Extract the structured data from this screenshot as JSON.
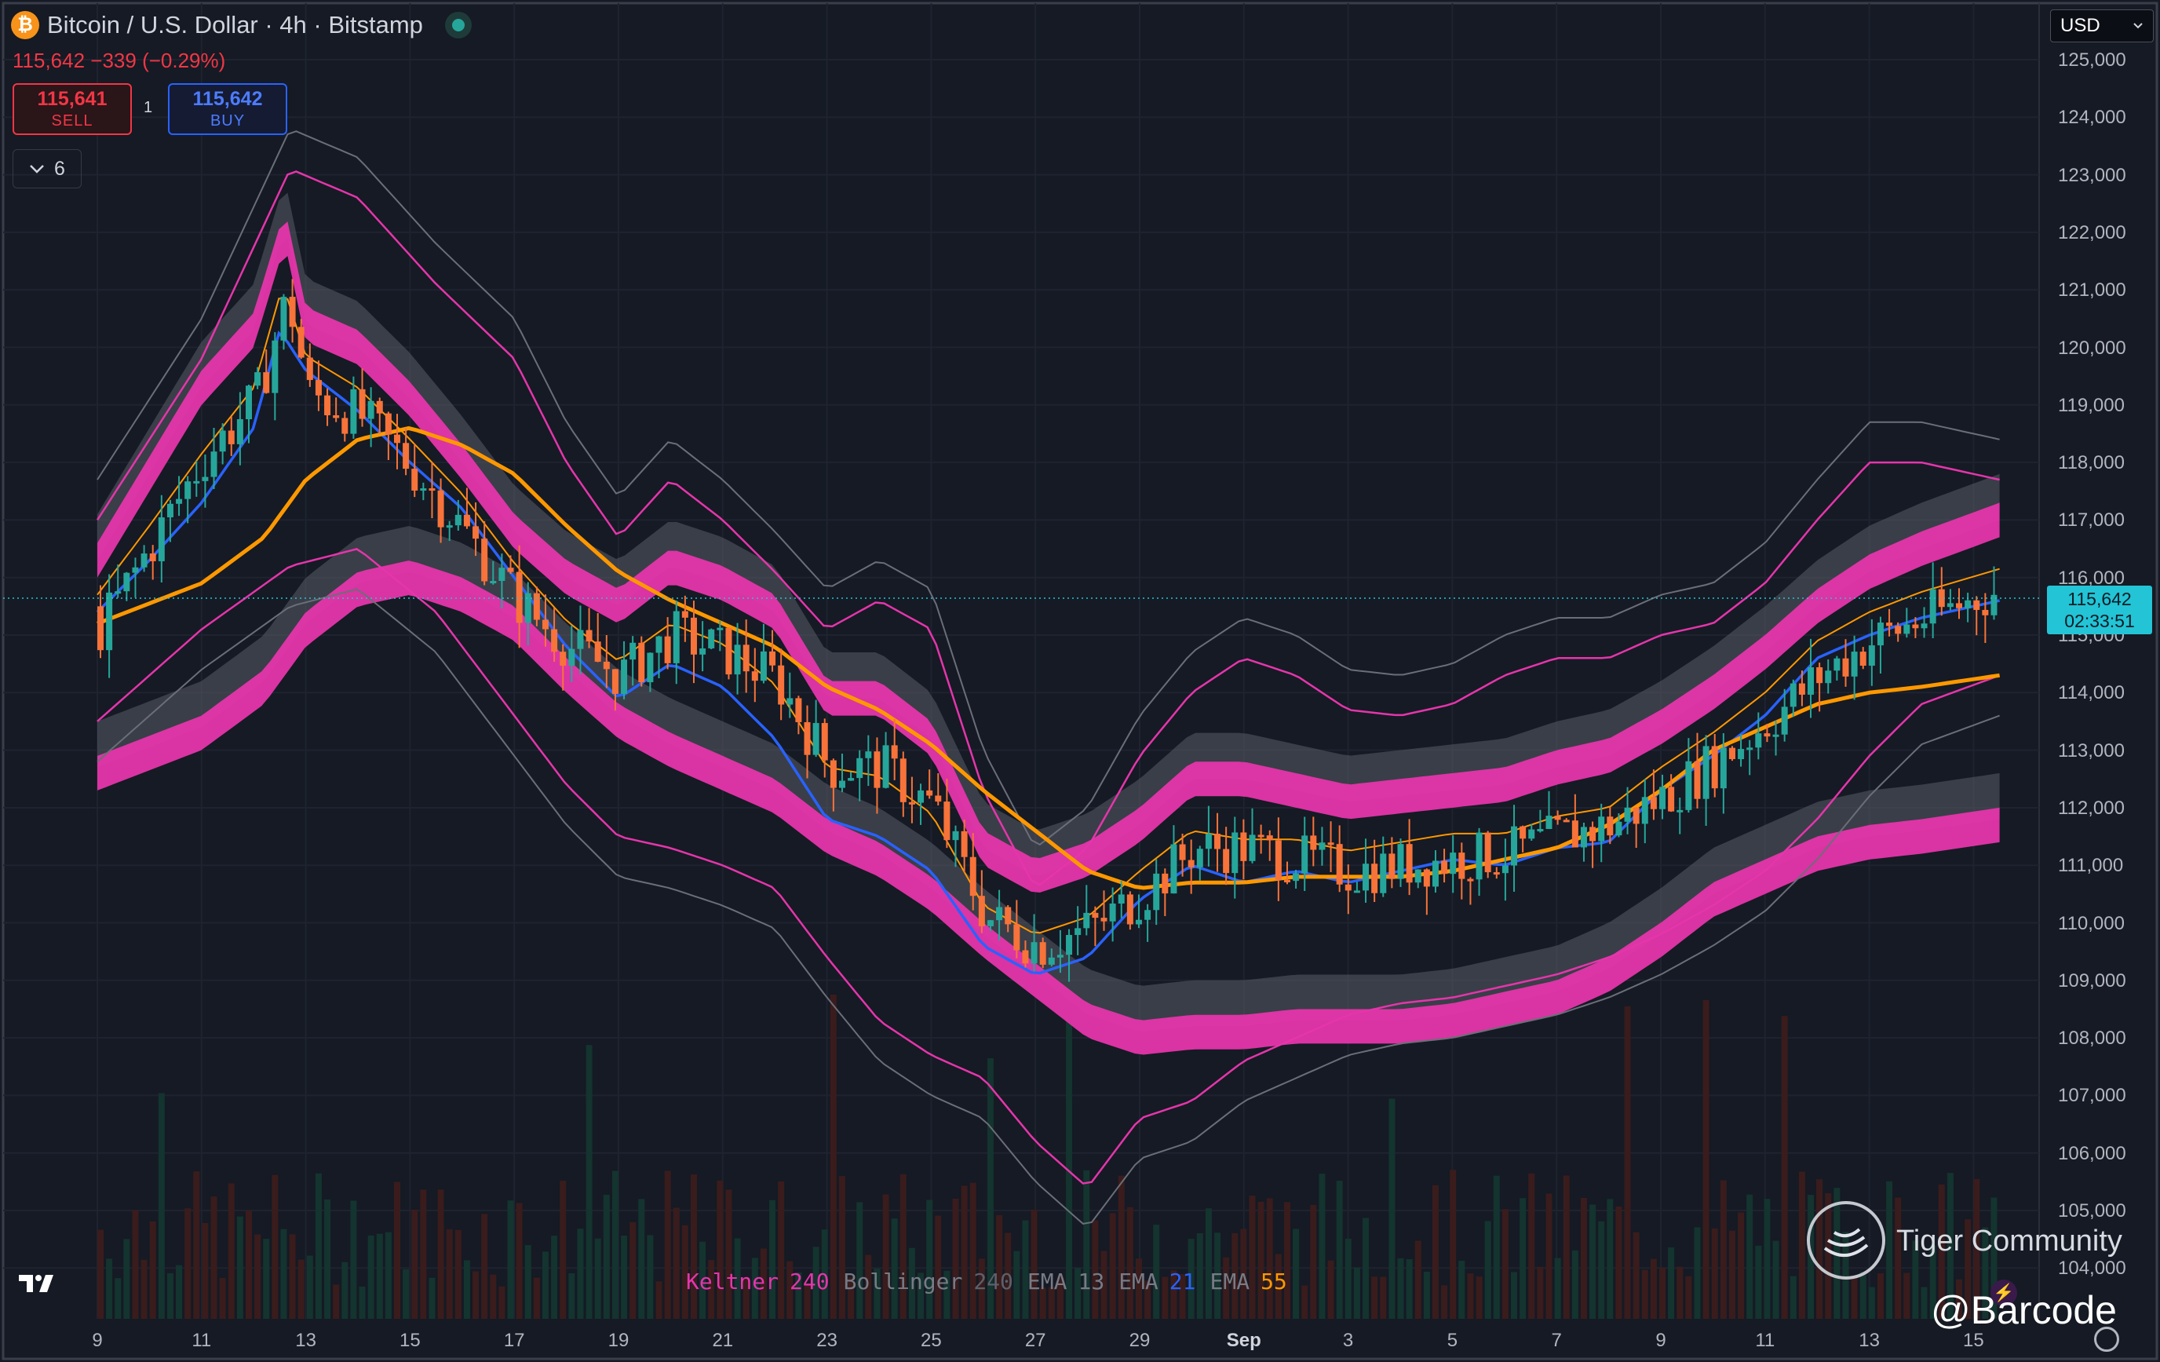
{
  "header": {
    "symbol_icon": "₿",
    "title": "Bitcoin / U.S. Dollar · 4h · Bitstamp",
    "quote": "115,642 −339 (−0.29%)"
  },
  "trade": {
    "sell_price": "115,641",
    "sell_label": "SELL",
    "buy_price": "115,642",
    "buy_label": "BUY",
    "quantity": "1"
  },
  "indicators_toggle": {
    "count": "6"
  },
  "currency_select": {
    "value": "USD"
  },
  "price_tag": {
    "price": "115,642",
    "countdown": "02:33:51"
  },
  "legend": [
    {
      "name": "Keltner",
      "value": "240",
      "color": "#e535ab"
    },
    {
      "name": "Bollinger",
      "value": "240",
      "color": "#5d606b"
    },
    {
      "name": "EMA",
      "value": "13",
      "color": "#787b86"
    },
    {
      "name": "EMA",
      "value": "21",
      "color": "#2962ff"
    },
    {
      "name": "EMA",
      "value": "55",
      "color": "#ff9800"
    }
  ],
  "watermark": {
    "community": "Tiger Community",
    "handle": "@Barcode",
    "logo_icon": "tiger-icon"
  },
  "colors": {
    "background": "#151a24",
    "up": "#26a69a",
    "down": "#f7733a",
    "keltner": "#e535ab",
    "bollinger": "#787b86",
    "ema21": "#2962ff",
    "ema55": "#ff9800",
    "price_line": "#22c4d6"
  },
  "chart_data": {
    "type": "candlestick",
    "ylim": [
      103600,
      125400
    ],
    "y_ticks": [
      "125,000",
      "124,000",
      "123,000",
      "122,000",
      "121,000",
      "120,000",
      "119,000",
      "118,000",
      "117,000",
      "116,000",
      "115,000",
      "114,000",
      "113,000",
      "112,000",
      "111,000",
      "110,000",
      "109,000",
      "108,000",
      "107,000",
      "106,000",
      "105,000",
      "104,000"
    ],
    "x_ticks": [
      "9",
      "11",
      "13",
      "15",
      "17",
      "19",
      "21",
      "23",
      "25",
      "27",
      "29",
      "Sep",
      "3",
      "5",
      "7",
      "9",
      "11",
      "13",
      "15"
    ],
    "series": [
      {
        "name": "EMA 55",
        "x": [
          0,
          2,
          3.2,
          4,
          5,
          6,
          7,
          8,
          9,
          10,
          11,
          12,
          13,
          14,
          15,
          16,
          17,
          18,
          19,
          20,
          21,
          22,
          23,
          24,
          25,
          26,
          27,
          28,
          29,
          30,
          31,
          32,
          33,
          34,
          35,
          36.5
        ],
        "values": [
          115200,
          115900,
          116700,
          117700,
          118400,
          118600,
          118300,
          117800,
          116900,
          116100,
          115600,
          115200,
          114800,
          114100,
          113700,
          113100,
          112300,
          111600,
          110900,
          110600,
          110700,
          110700,
          110800,
          110800,
          110800,
          110900,
          111100,
          111300,
          111700,
          112300,
          113000,
          113400,
          113800,
          114000,
          114100,
          114300
        ]
      },
      {
        "name": "EMA 21",
        "x": [
          0,
          1,
          2,
          3,
          3.5,
          4,
          5,
          6,
          7,
          8,
          9,
          10,
          11,
          12,
          13,
          14,
          15,
          16,
          17,
          18,
          19,
          20,
          21,
          22,
          23,
          24,
          25,
          26,
          27,
          28,
          29,
          30,
          31,
          32,
          33,
          34,
          35,
          36.5
        ],
        "values": [
          115400,
          116300,
          117300,
          118600,
          120300,
          119600,
          118900,
          118000,
          117200,
          116000,
          114800,
          113900,
          114500,
          114100,
          113200,
          111800,
          111500,
          110900,
          109600,
          109100,
          109400,
          110400,
          111000,
          110700,
          110900,
          110700,
          110900,
          111100,
          111000,
          111300,
          111400,
          112300,
          112900,
          113600,
          114600,
          115000,
          115300,
          115600
        ]
      },
      {
        "name": "Keltner basis",
        "x": [
          0,
          1,
          2,
          3,
          3.6,
          4,
          5,
          6,
          7,
          8,
          9,
          10,
          11,
          12,
          13,
          14,
          15,
          16,
          17,
          18,
          19,
          20,
          21,
          22,
          23,
          24,
          25,
          26,
          27,
          28,
          29,
          30,
          31,
          32,
          33,
          34,
          35,
          36.5
        ],
        "values": [
          115800,
          117300,
          118800,
          119800,
          121600,
          119900,
          119500,
          118600,
          117500,
          116300,
          115500,
          115000,
          115700,
          115400,
          114900,
          113400,
          113400,
          112700,
          110800,
          110300,
          110600,
          111200,
          112000,
          112000,
          111800,
          111600,
          111700,
          111800,
          111900,
          112200,
          112400,
          112900,
          113500,
          114200,
          115000,
          115600,
          116000,
          116500
        ]
      },
      {
        "name": "Bollinger upper",
        "x": [
          0,
          2,
          3.7,
          5,
          6.5,
          8,
          9,
          10,
          11,
          12,
          13,
          14,
          15,
          16,
          17,
          18,
          19,
          20,
          21,
          22,
          23,
          24,
          25,
          26,
          27,
          28,
          29,
          30,
          31,
          32,
          33,
          34,
          35,
          36.5
        ],
        "values": [
          117000,
          119800,
          123100,
          122600,
          121100,
          119800,
          118000,
          116700,
          117700,
          117000,
          116100,
          115100,
          115600,
          115100,
          112300,
          110600,
          111300,
          112900,
          114000,
          114600,
          114300,
          113700,
          113600,
          113800,
          114300,
          114600,
          114600,
          115000,
          115200,
          115900,
          117000,
          118000,
          118000,
          117700
        ]
      },
      {
        "name": "Bollinger lower",
        "x": [
          0,
          2,
          3.7,
          5,
          6.5,
          8,
          9,
          10,
          11,
          12,
          13,
          14,
          15,
          16,
          17,
          18,
          19,
          20,
          21,
          22,
          23,
          24,
          25,
          26,
          27,
          28,
          29,
          30,
          31,
          32,
          33,
          34,
          35,
          36.5
        ],
        "values": [
          113500,
          115100,
          116200,
          116500,
          115400,
          113600,
          112400,
          111500,
          111300,
          111000,
          110600,
          109400,
          108300,
          107700,
          107300,
          106200,
          105400,
          106600,
          106900,
          107600,
          108000,
          108400,
          108600,
          108700,
          108900,
          109100,
          109400,
          109800,
          110300,
          110900,
          111800,
          112900,
          113800,
          114300
        ]
      }
    ]
  }
}
